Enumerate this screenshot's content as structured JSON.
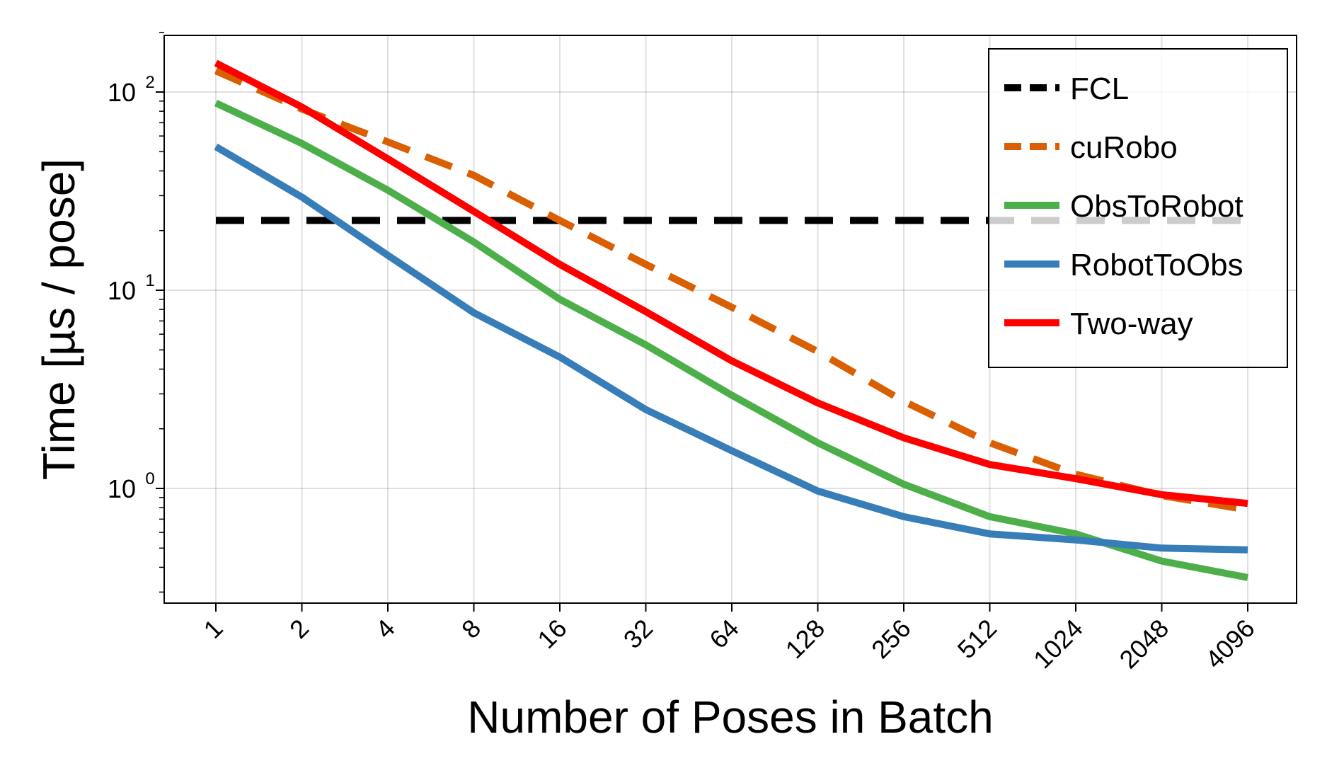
{
  "chart_data": {
    "type": "line",
    "title": "",
    "xlabel": "Number of Poses in Batch",
    "ylabel": "Time [µs / pose]",
    "x_scale": "log2",
    "y_scale": "log10",
    "categories": [
      "1",
      "2",
      "4",
      "8",
      "16",
      "32",
      "64",
      "128",
      "256",
      "512",
      "1024",
      "2048",
      "4096"
    ],
    "ylim": [
      0.27,
      200
    ],
    "y_ticks": [
      {
        "value": 1,
        "base": "10",
        "exp": "0"
      },
      {
        "value": 10,
        "base": "10",
        "exp": "1"
      },
      {
        "value": 100,
        "base": "10",
        "exp": "2"
      }
    ],
    "grid": true,
    "legend_position": "top-right",
    "series": [
      {
        "name": "FCL",
        "color": "#000000",
        "dash": "dashed",
        "values": [
          22.5,
          22.5,
          22.5,
          22.5,
          22.5,
          22.5,
          22.5,
          22.5,
          22.5,
          22.5,
          22.5,
          22.5,
          22.5
        ]
      },
      {
        "name": "cuRobo",
        "color": "#d95f02",
        "dash": "dashed",
        "values": [
          128,
          82,
          56,
          38,
          22.5,
          13.5,
          8.2,
          4.9,
          2.75,
          1.7,
          1.18,
          0.92,
          0.78
        ]
      },
      {
        "name": "ObsToRobot",
        "color": "#4daf4a",
        "dash": "solid",
        "values": [
          88,
          55,
          32,
          17.5,
          9.0,
          5.3,
          2.95,
          1.7,
          1.05,
          0.72,
          0.59,
          0.43,
          0.355
        ]
      },
      {
        "name": "RobotToObs",
        "color": "#377eb8",
        "dash": "solid",
        "values": [
          53,
          29.5,
          15,
          7.7,
          4.6,
          2.5,
          1.55,
          0.97,
          0.72,
          0.59,
          0.55,
          0.5,
          0.49
        ]
      },
      {
        "name": "Two-way",
        "color": "#ff0000",
        "dash": "solid",
        "values": [
          140,
          84,
          46,
          25,
          13.5,
          7.8,
          4.4,
          2.7,
          1.8,
          1.32,
          1.12,
          0.93,
          0.84
        ]
      }
    ]
  }
}
